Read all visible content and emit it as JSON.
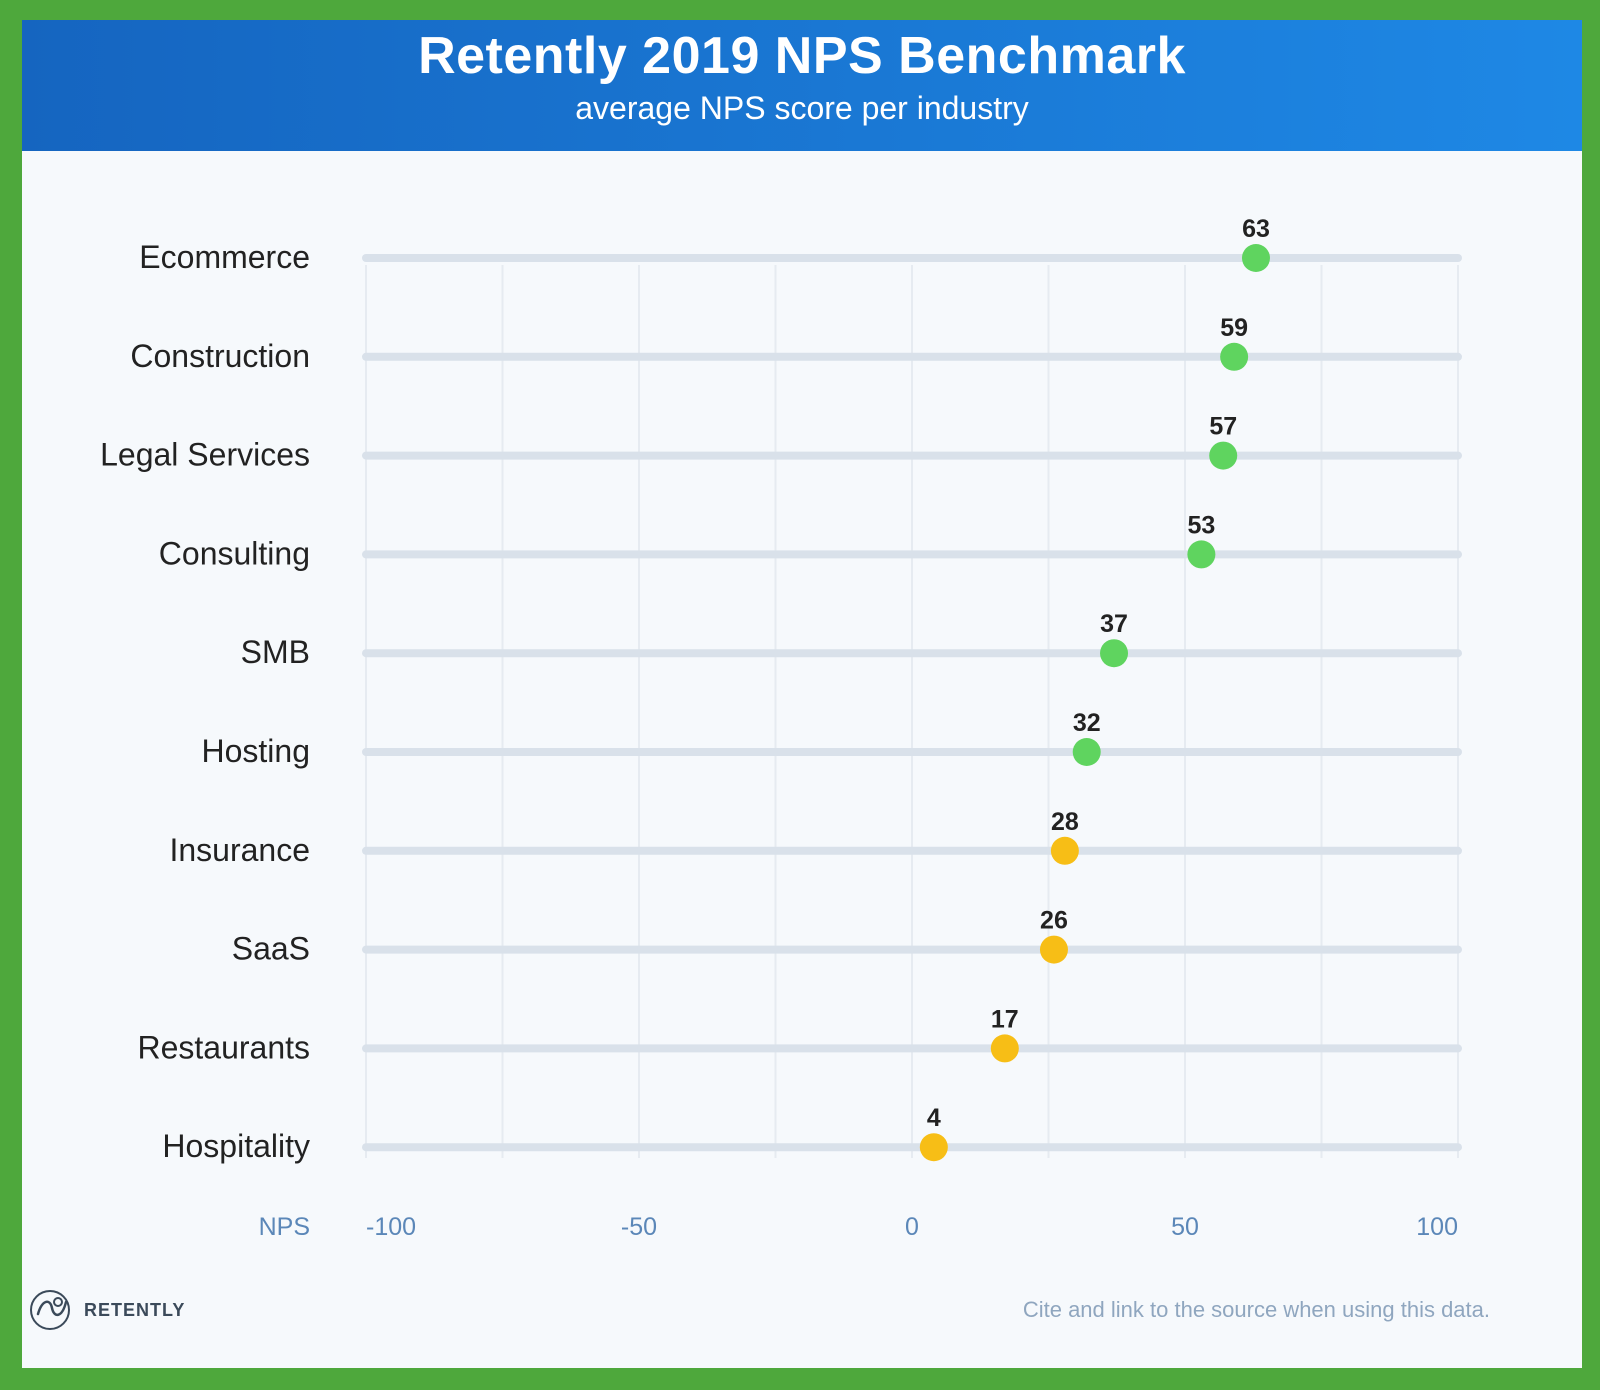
{
  "header": {
    "title": "Retently 2019 NPS Benchmark",
    "subtitle": "average NPS score per industry"
  },
  "footer": {
    "brand": "RETENTLY",
    "note": "Cite and link to the source when using this data."
  },
  "colors": {
    "promoter_dot": "#5fd45f",
    "passive_dot": "#f7be16",
    "track": "#d9e1ea",
    "grid": "#e6ebf1",
    "header_bg": "#1565c0"
  },
  "chart_data": {
    "type": "scatter",
    "title": "Retently 2019 NPS Benchmark",
    "subtitle": "average NPS score per industry",
    "xlabel": "NPS",
    "xlim": [
      -100,
      100
    ],
    "xticks": [
      -100,
      -50,
      0,
      50,
      100
    ],
    "grid": true,
    "categories": [
      "Ecommerce",
      "Construction",
      "Legal Services",
      "Consulting",
      "SMB",
      "Hosting",
      "Insurance",
      "SaaS",
      "Restaurants",
      "Hospitality"
    ],
    "values": [
      63,
      59,
      57,
      53,
      37,
      32,
      28,
      26,
      17,
      4
    ],
    "point_colors": [
      "green",
      "green",
      "green",
      "green",
      "green",
      "green",
      "orange",
      "orange",
      "orange",
      "orange"
    ]
  }
}
